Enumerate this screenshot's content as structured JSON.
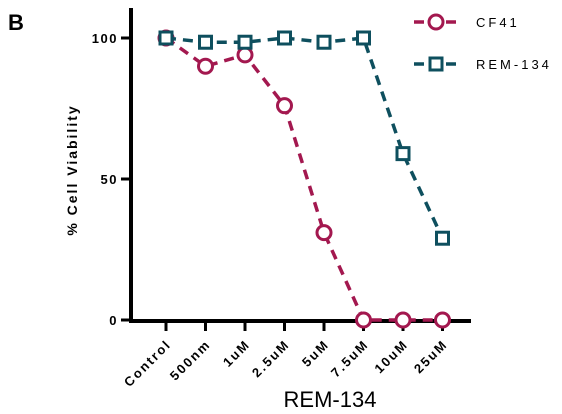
{
  "panel_label": "B",
  "chart_data": {
    "type": "line",
    "categories": [
      "Control",
      "500nm",
      "1uM",
      "2.5uM",
      "5uM",
      "7.5uM",
      "10uM",
      "25uM"
    ],
    "xlabel": "REM-134",
    "ylabel": "% Cell Viability",
    "ylim": [
      0,
      100
    ],
    "yticks": [
      0,
      50,
      100
    ],
    "grid": false,
    "legend_position": "top-right",
    "series": [
      {
        "name": "CF41",
        "marker": "circle",
        "line_style": "dashed",
        "color": "#a3184f",
        "values": [
          100,
          90,
          94,
          76,
          31,
          0,
          0,
          0
        ]
      },
      {
        "name": "REM-134",
        "marker": "square",
        "line_style": "dashed",
        "color": "#0e4f5e",
        "values": [
          100,
          98.5,
          98.5,
          100,
          98.5,
          100,
          59,
          29
        ]
      }
    ]
  }
}
